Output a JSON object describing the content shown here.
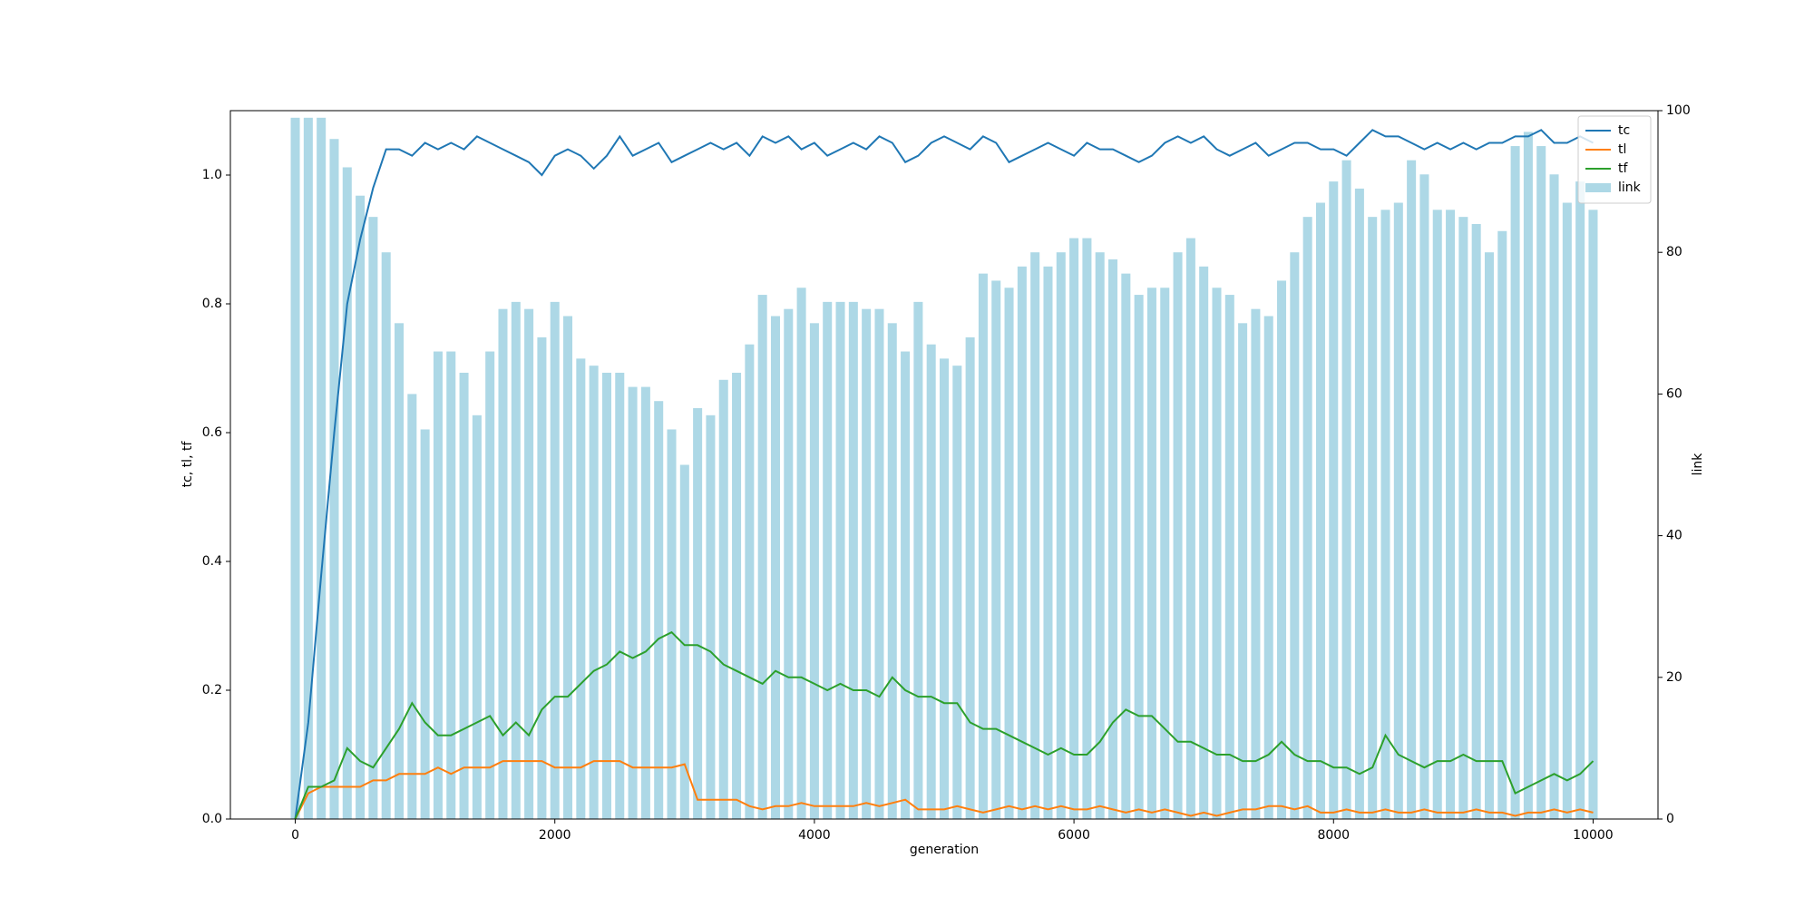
{
  "chart_data": {
    "type": "line",
    "xlabel": "generation",
    "ylabel": "tc, tl, tf",
    "y2label": "link",
    "x": [
      0,
      100,
      200,
      300,
      400,
      500,
      600,
      700,
      800,
      900,
      1000,
      1100,
      1200,
      1300,
      1400,
      1500,
      1600,
      1700,
      1800,
      1900,
      2000,
      2100,
      2200,
      2300,
      2400,
      2500,
      2600,
      2700,
      2800,
      2900,
      3000,
      3100,
      3200,
      3300,
      3400,
      3500,
      3600,
      3700,
      3800,
      3900,
      4000,
      4100,
      4200,
      4300,
      4400,
      4500,
      4600,
      4700,
      4800,
      4900,
      5000,
      5100,
      5200,
      5300,
      5400,
      5500,
      5600,
      5700,
      5800,
      5900,
      6000,
      6100,
      6200,
      6300,
      6400,
      6500,
      6600,
      6700,
      6800,
      6900,
      7000,
      7100,
      7200,
      7300,
      7400,
      7500,
      7600,
      7700,
      7800,
      7900,
      8000,
      8100,
      8200,
      8300,
      8400,
      8500,
      8600,
      8700,
      8800,
      8900,
      9000,
      9100,
      9200,
      9300,
      9400,
      9500,
      9600,
      9700,
      9800,
      9900,
      10000
    ],
    "series": [
      {
        "name": "tc",
        "color": "#1f77b4",
        "type": "line",
        "values": [
          0,
          0.15,
          0.38,
          0.6,
          0.8,
          0.9,
          0.98,
          1.04,
          1.04,
          1.03,
          1.05,
          1.04,
          1.05,
          1.04,
          1.06,
          1.05,
          1.04,
          1.03,
          1.02,
          1.0,
          1.03,
          1.04,
          1.03,
          1.01,
          1.03,
          1.06,
          1.03,
          1.04,
          1.05,
          1.02,
          1.03,
          1.04,
          1.05,
          1.04,
          1.05,
          1.03,
          1.06,
          1.05,
          1.06,
          1.04,
          1.05,
          1.03,
          1.04,
          1.05,
          1.04,
          1.06,
          1.05,
          1.02,
          1.03,
          1.05,
          1.06,
          1.05,
          1.04,
          1.06,
          1.05,
          1.02,
          1.03,
          1.04,
          1.05,
          1.04,
          1.03,
          1.05,
          1.04,
          1.04,
          1.03,
          1.02,
          1.03,
          1.05,
          1.06,
          1.05,
          1.06,
          1.04,
          1.03,
          1.04,
          1.05,
          1.03,
          1.04,
          1.05,
          1.05,
          1.04,
          1.04,
          1.03,
          1.05,
          1.07,
          1.06,
          1.06,
          1.05,
          1.04,
          1.05,
          1.04,
          1.05,
          1.04,
          1.05,
          1.05,
          1.06,
          1.06,
          1.07,
          1.05,
          1.05,
          1.06,
          1.05
        ]
      },
      {
        "name": "tl",
        "color": "#ff7f0e",
        "type": "line",
        "values": [
          0,
          0.04,
          0.05,
          0.05,
          0.05,
          0.05,
          0.06,
          0.06,
          0.07,
          0.07,
          0.07,
          0.08,
          0.07,
          0.08,
          0.08,
          0.08,
          0.09,
          0.09,
          0.09,
          0.09,
          0.08,
          0.08,
          0.08,
          0.09,
          0.09,
          0.09,
          0.08,
          0.08,
          0.08,
          0.08,
          0.085,
          0.03,
          0.03,
          0.03,
          0.03,
          0.02,
          0.015,
          0.02,
          0.02,
          0.025,
          0.02,
          0.02,
          0.02,
          0.02,
          0.025,
          0.02,
          0.025,
          0.03,
          0.015,
          0.015,
          0.015,
          0.02,
          0.015,
          0.01,
          0.015,
          0.02,
          0.015,
          0.02,
          0.015,
          0.02,
          0.015,
          0.015,
          0.02,
          0.015,
          0.01,
          0.015,
          0.01,
          0.015,
          0.01,
          0.005,
          0.01,
          0.005,
          0.01,
          0.015,
          0.015,
          0.02,
          0.02,
          0.015,
          0.02,
          0.01,
          0.01,
          0.015,
          0.01,
          0.01,
          0.015,
          0.01,
          0.01,
          0.015,
          0.01,
          0.01,
          0.01,
          0.015,
          0.01,
          0.01,
          0.005,
          0.01,
          0.01,
          0.015,
          0.01,
          0.015,
          0.01
        ]
      },
      {
        "name": "tf",
        "color": "#2ca02c",
        "type": "line",
        "values": [
          0,
          0.05,
          0.05,
          0.06,
          0.11,
          0.09,
          0.08,
          0.11,
          0.14,
          0.18,
          0.15,
          0.13,
          0.13,
          0.14,
          0.15,
          0.16,
          0.13,
          0.15,
          0.13,
          0.17,
          0.19,
          0.19,
          0.21,
          0.23,
          0.24,
          0.26,
          0.25,
          0.26,
          0.28,
          0.29,
          0.27,
          0.27,
          0.26,
          0.24,
          0.23,
          0.22,
          0.21,
          0.23,
          0.22,
          0.22,
          0.21,
          0.2,
          0.21,
          0.2,
          0.2,
          0.19,
          0.22,
          0.2,
          0.19,
          0.19,
          0.18,
          0.18,
          0.15,
          0.14,
          0.14,
          0.13,
          0.12,
          0.11,
          0.1,
          0.11,
          0.1,
          0.1,
          0.12,
          0.15,
          0.17,
          0.16,
          0.16,
          0.14,
          0.12,
          0.12,
          0.11,
          0.1,
          0.1,
          0.09,
          0.09,
          0.1,
          0.12,
          0.1,
          0.09,
          0.09,
          0.08,
          0.08,
          0.07,
          0.08,
          0.13,
          0.1,
          0.09,
          0.08,
          0.09,
          0.09,
          0.1,
          0.09,
          0.09,
          0.09,
          0.04,
          0.05,
          0.06,
          0.07,
          0.06,
          0.07,
          0.09
        ]
      },
      {
        "name": "link",
        "color": "#add8e6",
        "type": "bar",
        "axis": "y2",
        "values": [
          99,
          99,
          99,
          96,
          92,
          88,
          85,
          80,
          70,
          60,
          55,
          66,
          66,
          63,
          57,
          66,
          72,
          73,
          72,
          68,
          73,
          71,
          65,
          64,
          63,
          63,
          61,
          61,
          59,
          55,
          50,
          58,
          57,
          62,
          63,
          67,
          74,
          71,
          72,
          75,
          70,
          73,
          73,
          73,
          72,
          72,
          70,
          66,
          73,
          67,
          65,
          64,
          68,
          77,
          76,
          75,
          78,
          80,
          78,
          80,
          82,
          82,
          80,
          79,
          77,
          74,
          75,
          75,
          80,
          82,
          78,
          75,
          74,
          70,
          72,
          71,
          76,
          80,
          85,
          87,
          90,
          93,
          89,
          85,
          86,
          87,
          93,
          91,
          86,
          86,
          85,
          84,
          80,
          83,
          95,
          97,
          95,
          91,
          87,
          90,
          86
        ]
      }
    ],
    "xlim": [
      -500,
      10500
    ],
    "xticks": [
      0,
      2000,
      4000,
      6000,
      8000,
      10000
    ],
    "ylim": [
      0,
      1.1
    ],
    "yticks": [
      {
        "value": 0,
        "label": "0.0"
      },
      0.2,
      0.4,
      0.6,
      0.8,
      {
        "value": 1,
        "label": "1.0"
      }
    ],
    "y2lim": [
      0,
      100
    ],
    "y2ticks": [
      0,
      20,
      40,
      60,
      80,
      100
    ],
    "legend": "upper right",
    "grid": false
  }
}
